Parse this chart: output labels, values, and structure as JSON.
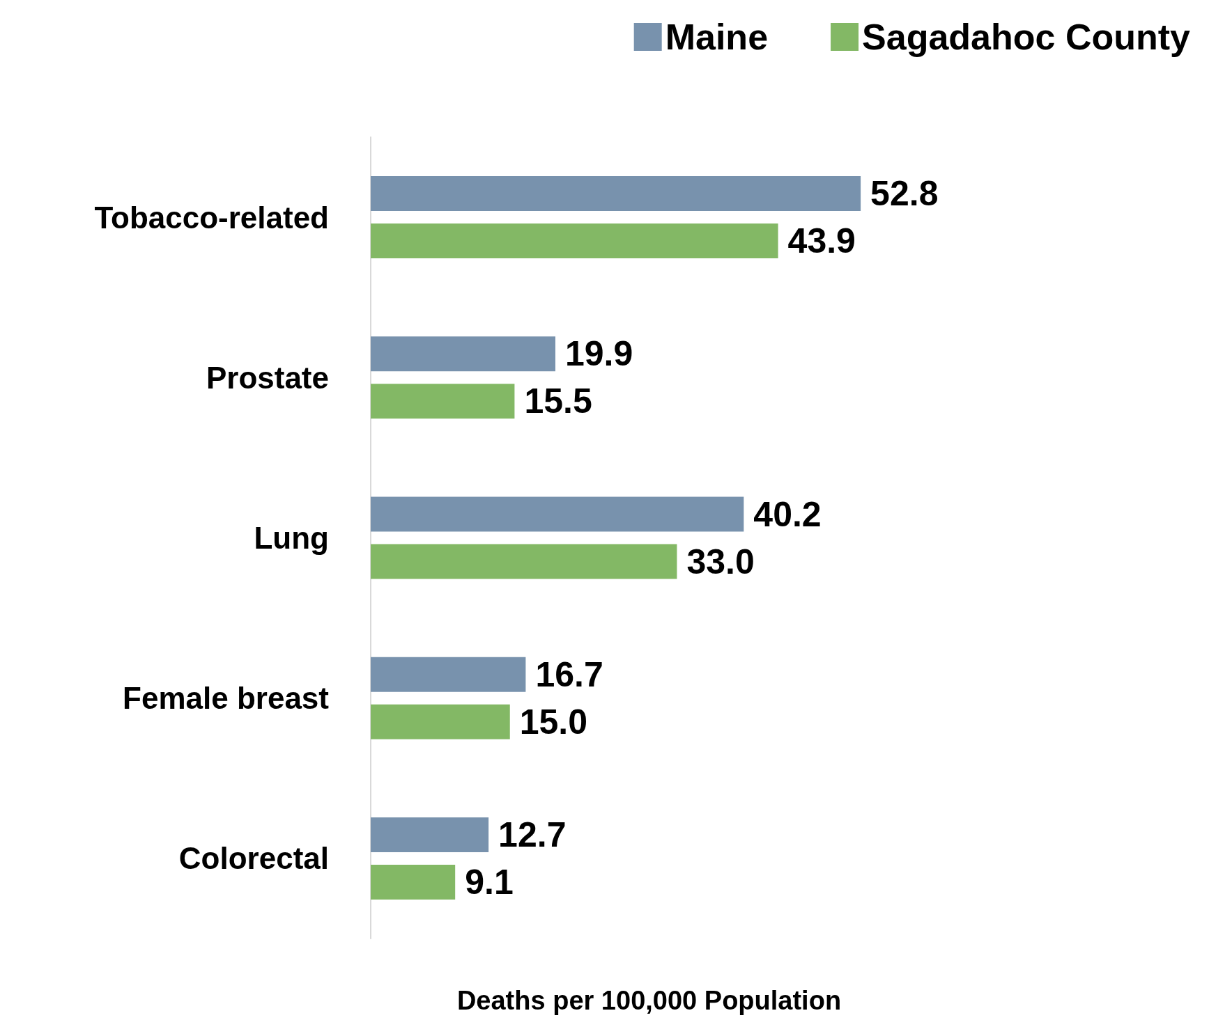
{
  "chart_data": {
    "type": "bar",
    "orientation": "horizontal",
    "xlabel": "Deaths per 100,000 Population",
    "categories": [
      "Tobacco-related",
      "Prostate",
      "Lung",
      "Female breast",
      "Colorectal"
    ],
    "series": [
      {
        "name": "Maine",
        "color": "#7892ad",
        "values": [
          52.8,
          19.9,
          40.2,
          16.7,
          12.7
        ],
        "value_labels": [
          "52.8",
          "19.9",
          "40.2",
          "16.7",
          "12.7"
        ]
      },
      {
        "name": "Sagadahoc County",
        "color": "#83b865",
        "values": [
          43.9,
          15.5,
          33.0,
          15.0,
          9.1
        ],
        "value_labels": [
          "43.9",
          "15.5",
          "33.0",
          "15.0",
          "9.1"
        ]
      }
    ],
    "legend": "top right",
    "grid": false
  }
}
